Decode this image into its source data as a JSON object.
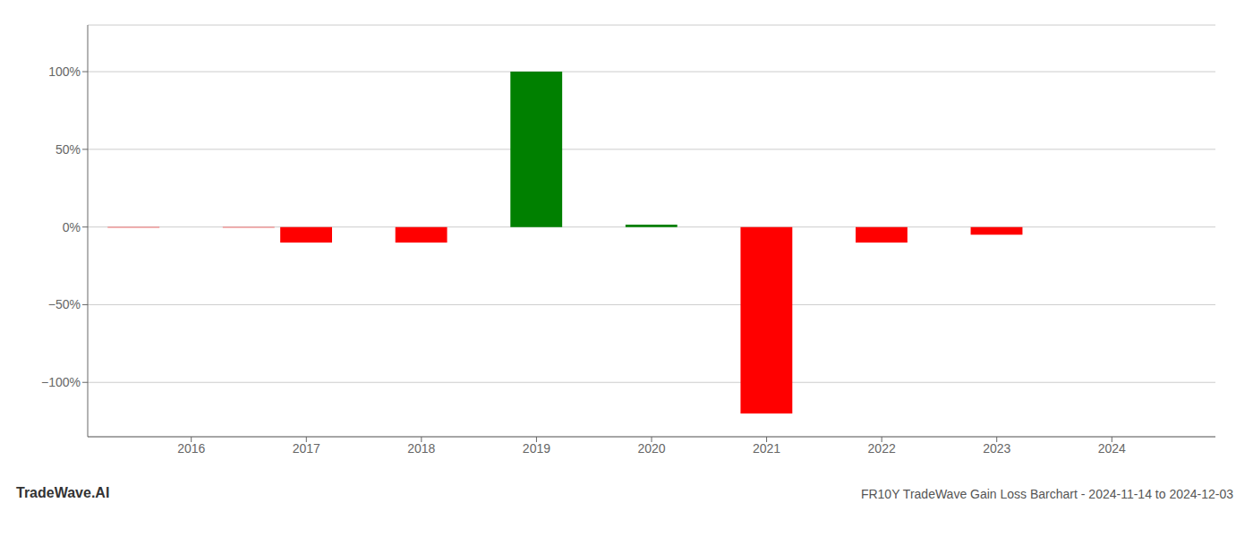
{
  "chart_data": {
    "type": "bar",
    "title": "FR10Y TradeWave Gain Loss Barchart - 2024-11-14 to 2024-12-03",
    "annotations": [
      "TradeWave.AI"
    ],
    "x": [
      2015.5,
      2016.5,
      2017,
      2018,
      2019,
      2020,
      2021,
      2022,
      2023,
      2024
    ],
    "values": [
      -0.3,
      -0.3,
      -10.0,
      -10.0,
      100.0,
      1.5,
      -120.0,
      -10.0,
      -5.0,
      0.0
    ],
    "colors": [
      "#ff0000",
      "#ff0000",
      "#ff0000",
      "#ff0000",
      "#008000",
      "#008000",
      "#ff0000",
      "#ff0000",
      "#ff0000",
      "#ff0000"
    ],
    "xlim": [
      2015.1,
      2024.9
    ],
    "ylim": [
      -135,
      130
    ],
    "xticks": [
      2016,
      2017,
      2018,
      2019,
      2020,
      2021,
      2022,
      2023,
      2024
    ],
    "yticks": [
      {
        "value": -100,
        "label": "−100%"
      },
      {
        "value": -50,
        "label": "−50%"
      },
      {
        "value": 0,
        "label": "0%"
      },
      {
        "value": 50,
        "label": "50%"
      },
      {
        "value": 100,
        "label": "100%"
      }
    ],
    "grid": true
  }
}
